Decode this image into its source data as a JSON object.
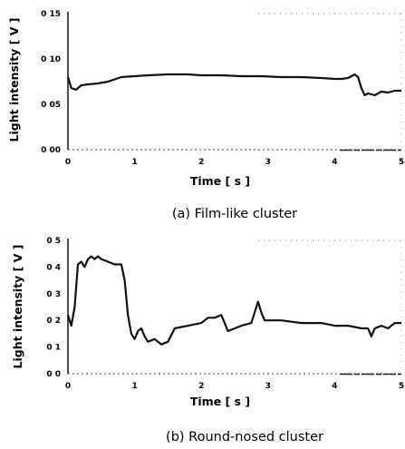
{
  "chart_data": [
    {
      "type": "line",
      "caption": "(a) Film-like cluster",
      "xlabel": "Time [ s ]",
      "ylabel": "Light intensity [ V ]",
      "xlim": [
        0,
        5
      ],
      "ylim": [
        0,
        0.15
      ],
      "x_tick_labels": [
        "0",
        "1",
        "2",
        "3",
        "4",
        "5"
      ],
      "y_tick_labels": [
        "0 00",
        "0 05",
        "0 10",
        "0 15"
      ],
      "x_ticks": [
        0,
        1,
        2,
        3,
        4,
        5
      ],
      "y_ticks": [
        0,
        0.05,
        0.1,
        0.15
      ],
      "grid": false,
      "series": [
        {
          "x": [
            0,
            0.05,
            0.12,
            0.2,
            0.3,
            0.45,
            0.6,
            0.8,
            1.0,
            1.2,
            1.5,
            1.8,
            2.0,
            2.3,
            2.6,
            2.9,
            3.2,
            3.5,
            3.8,
            4.0,
            4.1,
            4.2,
            4.3,
            4.35,
            4.4,
            4.45,
            4.5,
            4.6,
            4.7,
            4.8,
            4.9,
            5.0
          ],
          "y": [
            0.08,
            0.068,
            0.066,
            0.071,
            0.072,
            0.073,
            0.075,
            0.08,
            0.081,
            0.082,
            0.083,
            0.083,
            0.082,
            0.082,
            0.081,
            0.081,
            0.08,
            0.08,
            0.079,
            0.078,
            0.078,
            0.079,
            0.083,
            0.08,
            0.068,
            0.06,
            0.062,
            0.06,
            0.064,
            0.063,
            0.065,
            0.065
          ]
        }
      ]
    },
    {
      "type": "line",
      "caption": "(b) Round-nosed cluster",
      "xlabel": "Time [ s ]",
      "ylabel": "Light intensity [ V ]",
      "xlim": [
        0,
        5
      ],
      "ylim": [
        0,
        0.5
      ],
      "x_tick_labels": [
        "0",
        "1",
        "2",
        "3",
        "4",
        "5"
      ],
      "y_tick_labels": [
        "0 0",
        "0 1",
        "0 2",
        "0 3",
        "0 4",
        "0 5"
      ],
      "x_ticks": [
        0,
        1,
        2,
        3,
        4,
        5
      ],
      "y_ticks": [
        0,
        0.1,
        0.2,
        0.3,
        0.4,
        0.5
      ],
      "grid": false,
      "series": [
        {
          "x": [
            0,
            0.05,
            0.1,
            0.15,
            0.2,
            0.25,
            0.3,
            0.35,
            0.4,
            0.45,
            0.5,
            0.6,
            0.7,
            0.8,
            0.85,
            0.9,
            0.95,
            1.0,
            1.05,
            1.1,
            1.15,
            1.2,
            1.3,
            1.4,
            1.5,
            1.6,
            1.8,
            2.0,
            2.1,
            2.2,
            2.3,
            2.4,
            2.6,
            2.75,
            2.85,
            2.9,
            2.95,
            3.0,
            3.2,
            3.5,
            3.8,
            4.0,
            4.2,
            4.4,
            4.5,
            4.55,
            4.6,
            4.7,
            4.8,
            4.9,
            5.0
          ],
          "y": [
            0.22,
            0.18,
            0.25,
            0.41,
            0.42,
            0.4,
            0.43,
            0.44,
            0.43,
            0.44,
            0.43,
            0.42,
            0.41,
            0.41,
            0.35,
            0.22,
            0.15,
            0.13,
            0.16,
            0.17,
            0.14,
            0.12,
            0.13,
            0.11,
            0.12,
            0.17,
            0.18,
            0.19,
            0.21,
            0.21,
            0.22,
            0.16,
            0.18,
            0.19,
            0.27,
            0.23,
            0.2,
            0.2,
            0.2,
            0.19,
            0.19,
            0.18,
            0.18,
            0.17,
            0.17,
            0.14,
            0.17,
            0.18,
            0.17,
            0.19,
            0.19
          ]
        }
      ]
    }
  ]
}
